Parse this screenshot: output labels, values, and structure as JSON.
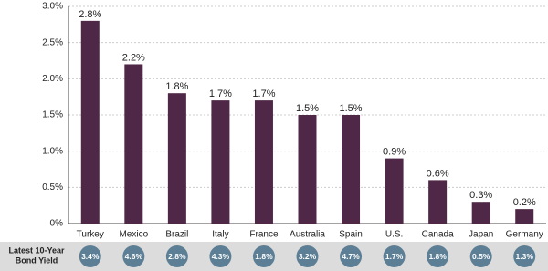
{
  "chart_data": {
    "type": "bar",
    "categories": [
      "Turkey",
      "Mexico",
      "Brazil",
      "Italy",
      "France",
      "Australia",
      "Spain",
      "U.S.",
      "Canada",
      "Japan",
      "Germany"
    ],
    "values": [
      2.8,
      2.2,
      1.8,
      1.7,
      1.7,
      1.5,
      1.5,
      0.9,
      0.6,
      0.3,
      0.2
    ],
    "value_labels": [
      "2.8%",
      "2.2%",
      "1.8%",
      "1.7%",
      "1.7%",
      "1.5%",
      "1.5%",
      "0.9%",
      "0.6%",
      "0.3%",
      "0.2%"
    ],
    "color": "#4f2747",
    "ylim": [
      0,
      3
    ],
    "yticks": [
      {
        "value": 0,
        "label": "0%"
      },
      {
        "value": 0.5,
        "label": "0.5%"
      },
      {
        "value": 1,
        "label": "1.0%"
      },
      {
        "value": 1.5,
        "label": "1.5%"
      },
      {
        "value": 2,
        "label": "2.0%"
      },
      {
        "value": 2.5,
        "label": "2.5%"
      },
      {
        "value": 3,
        "label": "3.0%"
      }
    ],
    "grid": true,
    "bond_yield_row": {
      "title_lines": [
        "Latest 10-Year",
        "Bond Yield"
      ],
      "labels": [
        "3.4%",
        "4.6%",
        "2.8%",
        "4.3%",
        "1.8%",
        "3.2%",
        "4.7%",
        "1.7%",
        "1.8%",
        "0.5%",
        "1.3%"
      ],
      "color": "#5d7f95"
    }
  }
}
